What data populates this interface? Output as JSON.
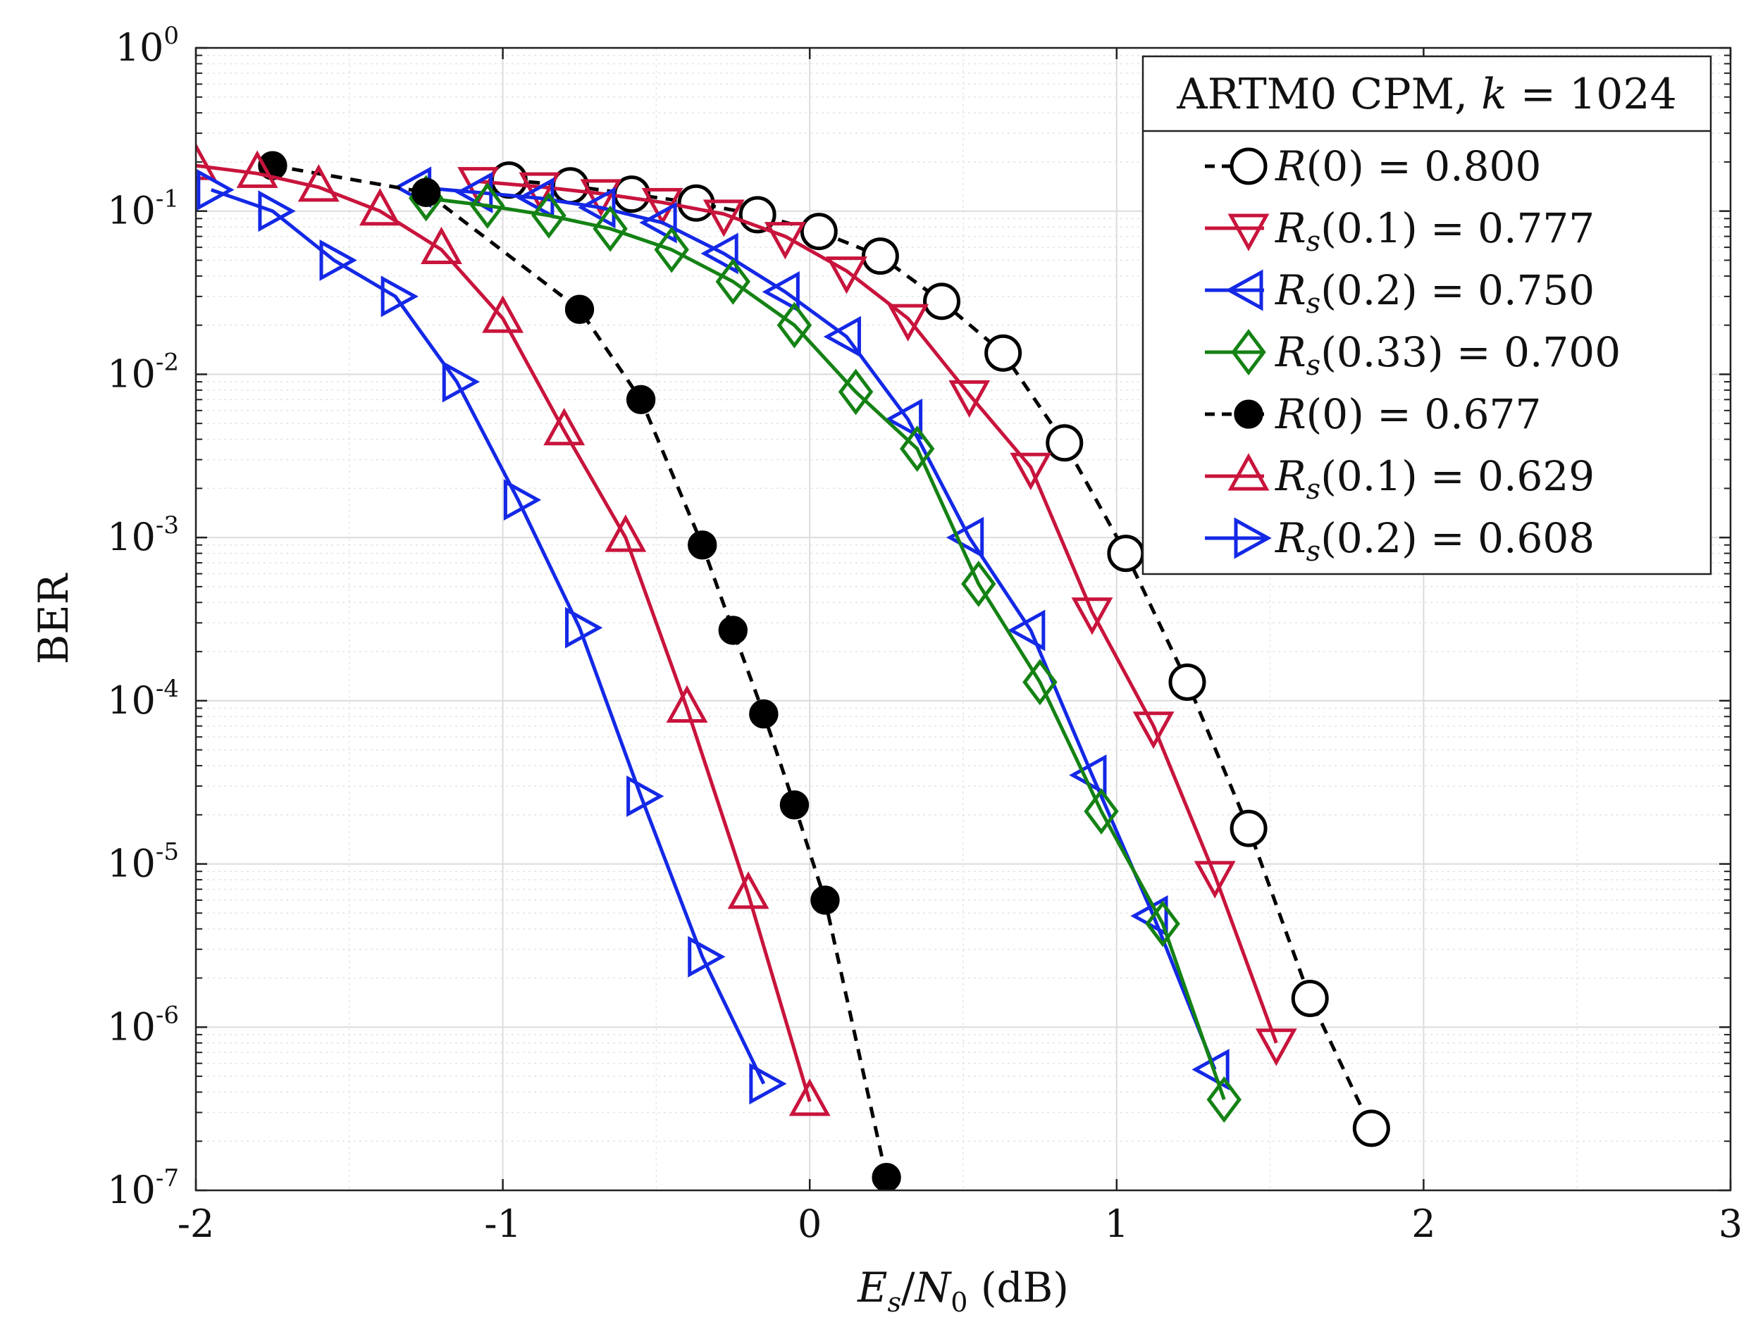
{
  "chart_data": {
    "type": "line",
    "title": "",
    "xlabel": "E_s/N_0 (dB)",
    "xlabel_parts": {
      "var1": "E",
      "sub1": "s",
      "slash": "/",
      "var2": "N",
      "sub2": "0",
      "unit": " (dB)"
    },
    "ylabel": "BER",
    "xlim": [
      -2,
      3
    ],
    "ylim": [
      1e-07,
      1
    ],
    "yscale": "log",
    "grid": true,
    "x_ticks": [
      -2,
      -1,
      0,
      1,
      2,
      3
    ],
    "x_tick_labels": [
      "-2",
      "-1",
      "0",
      "1",
      "2",
      "3"
    ],
    "y_ticks": [
      {
        "base": "10",
        "exp": "0"
      },
      {
        "base": "10",
        "exp": "-1"
      },
      {
        "base": "10",
        "exp": "-2"
      },
      {
        "base": "10",
        "exp": "-3"
      },
      {
        "base": "10",
        "exp": "-4"
      },
      {
        "base": "10",
        "exp": "-5"
      },
      {
        "base": "10",
        "exp": "-6"
      },
      {
        "base": "10",
        "exp": "-7"
      }
    ],
    "legend_title": "ARTM0 CPM, k = 1024",
    "legend_title_parts": {
      "text": "ARTM0 CPM, ",
      "var": "k",
      "rest": " = 1024"
    },
    "legend_position": "top-right",
    "series": [
      {
        "name": "R(0) = 0.800",
        "label": {
          "main": "R",
          "sub": "",
          "rest": "(0) = 0.800"
        },
        "color": "#000000",
        "dashed": true,
        "marker": "circle-open",
        "x": [
          -0.98,
          -0.78,
          -0.58,
          -0.37,
          -0.17,
          0.03,
          0.23,
          0.43,
          0.63,
          0.83,
          1.03,
          1.23,
          1.43,
          1.63,
          1.83
        ],
        "y": [
          0.155,
          0.143,
          0.127,
          0.112,
          0.095,
          0.075,
          0.053,
          0.028,
          0.0135,
          0.0038,
          0.0008,
          0.00013,
          1.65e-05,
          1.5e-06,
          2.4e-07
        ]
      },
      {
        "name": "Rs(0.1) = 0.777",
        "label": {
          "main": "R",
          "sub": "s",
          "rest": "(0.1) = 0.777"
        },
        "color": "#C8143C",
        "dashed": false,
        "marker": "triangle-down",
        "x": [
          -1.08,
          -0.88,
          -0.68,
          -0.48,
          -0.28,
          -0.08,
          0.12,
          0.32,
          0.52,
          0.72,
          0.92,
          1.12,
          1.32,
          1.52
        ],
        "y": [
          0.152,
          0.141,
          0.128,
          0.113,
          0.096,
          0.07,
          0.043,
          0.022,
          0.0075,
          0.0027,
          0.00035,
          7e-05,
          8.5e-06,
          8e-07
        ]
      },
      {
        "name": "Rs(0.2) = 0.750",
        "label": {
          "main": "R",
          "sub": "s",
          "rest": "(0.2) = 0.750"
        },
        "color": "#1428E6",
        "dashed": false,
        "marker": "triangle-left",
        "x": [
          -1.28,
          -1.08,
          -0.88,
          -0.68,
          -0.48,
          -0.28,
          -0.08,
          0.12,
          0.32,
          0.52,
          0.72,
          0.92,
          1.12,
          1.32
        ],
        "y": [
          0.14,
          0.13,
          0.12,
          0.105,
          0.085,
          0.055,
          0.032,
          0.017,
          0.0053,
          0.001,
          0.00027,
          3.5e-05,
          4.8e-06,
          5.5e-07
        ]
      },
      {
        "name": "Rs(0.33) = 0.700",
        "label": {
          "main": "R",
          "sub": "s",
          "rest": "(0.33) = 0.700"
        },
        "color": "#148214",
        "dashed": false,
        "marker": "diamond",
        "x": [
          -1.25,
          -1.05,
          -0.85,
          -0.65,
          -0.45,
          -0.25,
          -0.05,
          0.15,
          0.35,
          0.55,
          0.75,
          0.95,
          1.15,
          1.35
        ],
        "y": [
          0.12,
          0.108,
          0.094,
          0.078,
          0.058,
          0.037,
          0.02,
          0.0078,
          0.0035,
          0.00052,
          0.00013,
          2.1e-05,
          4.3e-06,
          3.6e-07
        ]
      },
      {
        "name": "R(0) = 0.677",
        "label": {
          "main": "R",
          "sub": "",
          "rest": "(0) = 0.677"
        },
        "color": "#000000",
        "dashed": true,
        "marker": "circle-filled",
        "x": [
          -1.75,
          -1.25,
          -0.75,
          -0.55,
          -0.35,
          -0.25,
          -0.15,
          -0.05,
          0.05,
          0.25
        ],
        "y": [
          0.19,
          0.13,
          0.025,
          0.007,
          0.0009,
          0.00027,
          8.3e-05,
          2.3e-05,
          6e-06,
          1.2e-07
        ]
      },
      {
        "name": "Rs(0.1) = 0.629",
        "label": {
          "main": "R",
          "sub": "s",
          "rest": "(0.1) = 0.629"
        },
        "color": "#C8143C",
        "dashed": false,
        "marker": "triangle-up",
        "x": [
          -2.0,
          -1.8,
          -1.6,
          -1.4,
          -1.2,
          -1.0,
          -0.8,
          -0.6,
          -0.4,
          -0.2,
          0.0
        ],
        "y": [
          0.19,
          0.17,
          0.14,
          0.1,
          0.058,
          0.022,
          0.0045,
          0.001,
          9e-05,
          6.5e-06,
          3.5e-07
        ]
      },
      {
        "name": "Rs(0.2) = 0.608",
        "label": {
          "main": "R",
          "sub": "s",
          "rest": "(0.2) = 0.608"
        },
        "color": "#1428E6",
        "dashed": false,
        "marker": "triangle-right",
        "x": [
          -1.95,
          -1.75,
          -1.55,
          -1.35,
          -1.15,
          -0.95,
          -0.75,
          -0.55,
          -0.35,
          -0.15
        ],
        "y": [
          0.135,
          0.1,
          0.05,
          0.03,
          0.009,
          0.0017,
          0.00028,
          2.6e-05,
          2.7e-06,
          4.5e-07
        ]
      }
    ]
  }
}
